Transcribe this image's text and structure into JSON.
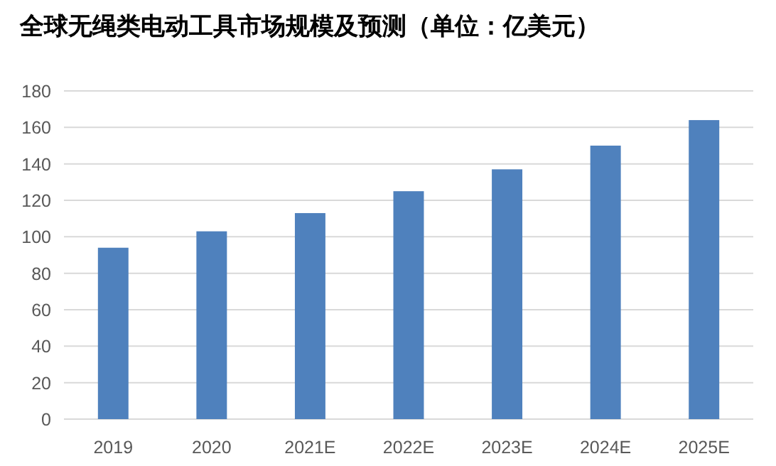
{
  "chart_data": {
    "type": "bar",
    "title": "全球无绳类电动工具市场规模及预测（单位：亿美元）",
    "categories": [
      "2019",
      "2020",
      "2021E",
      "2022E",
      "2023E",
      "2024E",
      "2025E"
    ],
    "values": [
      94,
      103,
      113,
      125,
      137,
      150,
      164
    ],
    "color": "#4f81bd",
    "ylim": [
      0,
      180
    ],
    "yticks": [
      0,
      20,
      40,
      60,
      80,
      100,
      120,
      140,
      160,
      180
    ],
    "grid": "y"
  }
}
